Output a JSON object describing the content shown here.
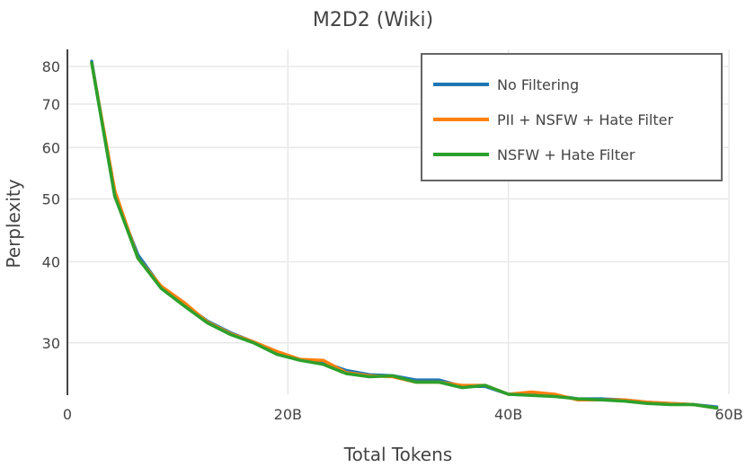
{
  "chart_data": {
    "type": "line",
    "title": "M2D2 (Wiki)",
    "xlabel": "Total Tokens",
    "ylabel": "Perplexity",
    "xlim": [
      0,
      60
    ],
    "ylim": [
      25,
      85
    ],
    "y_scale": "log",
    "grid": true,
    "legend_position": "top-right",
    "x_ticks": [
      {
        "value": 0,
        "label": "0"
      },
      {
        "value": 20,
        "label": "20B"
      },
      {
        "value": 40,
        "label": "40B"
      },
      {
        "value": 60,
        "label": "60B"
      }
    ],
    "y_ticks": [
      {
        "value": 30,
        "label": "30"
      },
      {
        "value": 40,
        "label": "40"
      },
      {
        "value": 50,
        "label": "50"
      },
      {
        "value": 60,
        "label": "60"
      },
      {
        "value": 70,
        "label": "70"
      },
      {
        "value": 80,
        "label": "80"
      }
    ],
    "x": [
      2.2,
      4.3,
      6.4,
      8.5,
      10.6,
      12.7,
      14.8,
      16.9,
      19.0,
      21.1,
      23.2,
      25.3,
      27.4,
      29.5,
      31.6,
      33.7,
      35.8,
      37.9,
      40.0,
      42.1,
      44.2,
      46.3,
      48.4,
      50.5,
      52.6,
      54.7,
      56.8,
      58.9
    ],
    "series": [
      {
        "name": "No Filtering",
        "color": "#1f77b4",
        "values": [
          81.5,
          50.5,
          41.0,
          36.6,
          34.4,
          32.4,
          31.1,
          30.1,
          29.0,
          28.3,
          28.0,
          27.2,
          26.8,
          26.7,
          26.3,
          26.3,
          25.7,
          25.7,
          25.0,
          25.0,
          24.9,
          24.6,
          24.6,
          24.5,
          24.3,
          24.2,
          24.1,
          23.9
        ]
      },
      {
        "name": "PII + NSFW + Hate Filter",
        "color": "#ff7f0e",
        "values": [
          81.0,
          51.5,
          40.5,
          36.7,
          34.6,
          32.3,
          31.0,
          30.1,
          29.1,
          28.3,
          28.2,
          27.0,
          26.7,
          26.6,
          26.1,
          26.1,
          25.8,
          25.8,
          25.0,
          25.2,
          25.0,
          24.5,
          24.5,
          24.5,
          24.3,
          24.2,
          24.1,
          23.8
        ]
      },
      {
        "name": "NSFW + Hate Filter",
        "color": "#2ca02c",
        "values": [
          81.0,
          50.5,
          40.5,
          36.4,
          34.2,
          32.2,
          30.9,
          30.0,
          28.8,
          28.2,
          27.8,
          26.9,
          26.6,
          26.7,
          26.1,
          26.1,
          25.6,
          25.8,
          25.0,
          24.9,
          24.8,
          24.6,
          24.5,
          24.4,
          24.2,
          24.1,
          24.1,
          23.8
        ]
      }
    ]
  }
}
